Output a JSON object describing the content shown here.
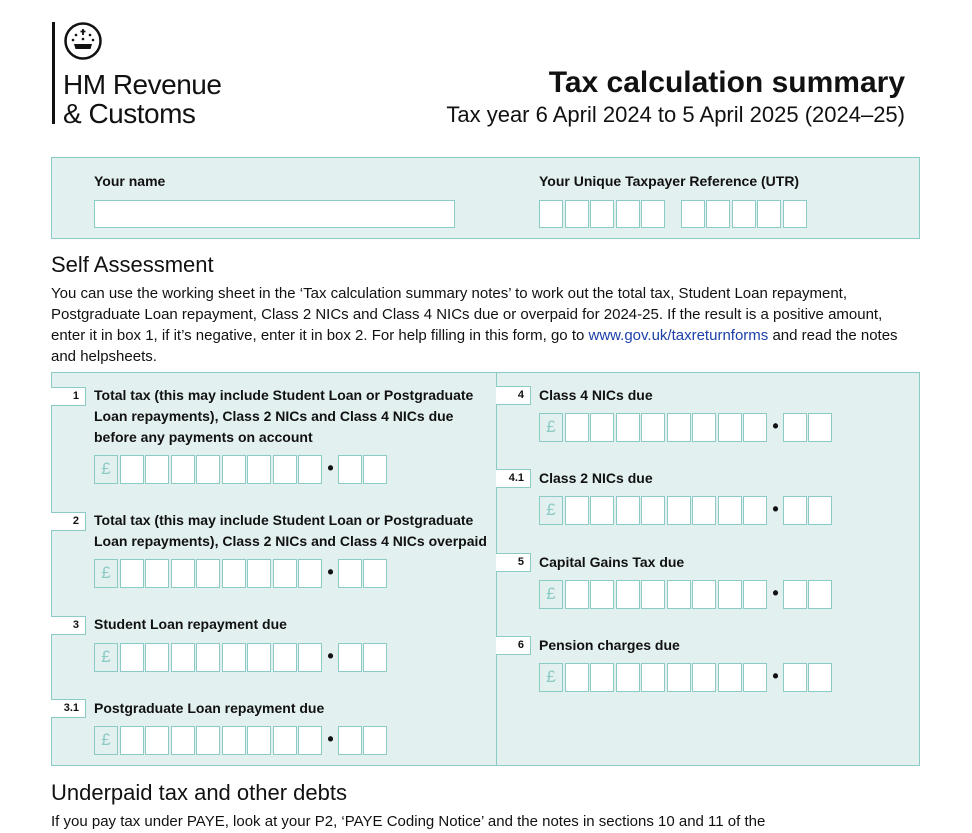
{
  "header": {
    "logo_line1": "HM Revenue",
    "logo_line2": "& Customs",
    "title": "Tax calculation summary",
    "subtitle": "Tax year 6 April 2024 to 5 April 2025 (2024–25)"
  },
  "identity": {
    "name_label": "Your name",
    "name_value": "",
    "utr_label": "Your Unique Taxpayer Reference (UTR)"
  },
  "self_assessment": {
    "heading": "Self Assessment",
    "intro_before_link": "You can use the working sheet in the ‘Tax calculation summary notes’ to work out the total tax, Student Loan repayment, Postgraduate Loan repayment, Class 2 NICs and Class 4 NICs due or overpaid for 2024-25. If the result is a positive amount, enter it in box 1, if it’s negative, enter it in box 2. For help filling in this form, go to ",
    "link": "www.gov.uk/taxreturnforms",
    "intro_after_link": " and read the notes and helpsheets.",
    "currency_symbol": "£",
    "decimal_point": "•",
    "boxes": [
      {
        "number": "1",
        "label": "Total tax (this may include Student Loan or Postgraduate Loan repayments), Class 2 NICs and Class 4 NICs due before any payments on account",
        "value": ""
      },
      {
        "number": "2",
        "label": "Total tax (this may include Student Loan or Postgraduate Loan repayments), Class 2 NICs and Class 4 NICs overpaid",
        "value": ""
      },
      {
        "number": "3",
        "label": "Student Loan repayment due",
        "value": ""
      },
      {
        "number": "3.1",
        "label": "Postgraduate Loan repayment due",
        "value": ""
      },
      {
        "number": "4",
        "label": "Class 4 NICs due",
        "value": ""
      },
      {
        "number": "4.1",
        "label": "Class 2 NICs due",
        "value": ""
      },
      {
        "number": "5",
        "label": "Capital Gains Tax due",
        "value": ""
      },
      {
        "number": "6",
        "label": "Pension charges due",
        "value": ""
      }
    ]
  },
  "underpaid": {
    "heading": "Underpaid tax and other debts",
    "text": "If you pay tax under PAYE, look at your P2, ‘PAYE Coding Notice’ and the notes in sections 10 and 11 of the"
  },
  "colors": {
    "panel": "#e3f0f0",
    "border": "#8ccbc5",
    "link": "#1d3fa8"
  }
}
